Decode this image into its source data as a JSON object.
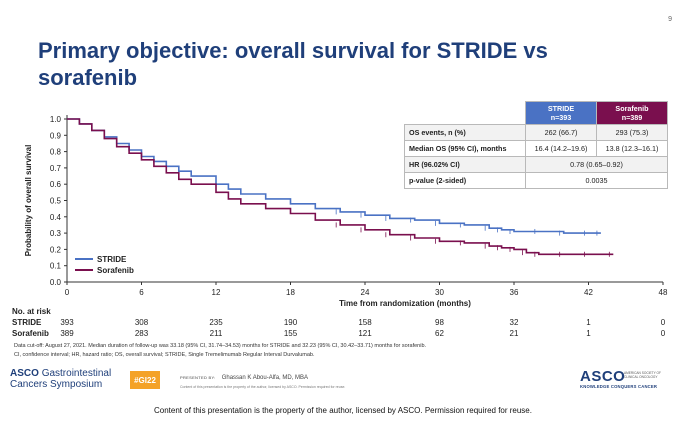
{
  "page_number": "9",
  "title": "Primary objective: overall survival for STRIDE vs sorafenib",
  "stats_table": {
    "col_headers": [
      {
        "name": "STRIDE",
        "n": "n=393"
      },
      {
        "name": "Sorafenib",
        "n": "n=389"
      }
    ],
    "rows": [
      {
        "label": "OS events, n (%)",
        "stride": "262 (66.7)",
        "sorafenib": "293 (75.3)"
      },
      {
        "label": "Median OS (95% CI), months",
        "stride": "16.4 (14.2–19.6)",
        "sorafenib": "13.8 (12.3–16.1)"
      },
      {
        "label": "HR (96.02% CI)",
        "combined": "0.78 (0.65–0.92)"
      },
      {
        "label": "p-value (2-sided)",
        "combined": "0.0035"
      }
    ]
  },
  "at_risk": {
    "title": "No. at risk",
    "rows": [
      {
        "name": "STRIDE",
        "values": [
          "393",
          "308",
          "235",
          "190",
          "158",
          "98",
          "32",
          "1",
          "0"
        ]
      },
      {
        "name": "Sorafenib",
        "values": [
          "389",
          "283",
          "211",
          "155",
          "121",
          "62",
          "21",
          "1",
          "0"
        ]
      }
    ]
  },
  "footnote": [
    "Data cut-off: August 27, 2021. Median duration of follow-up was 33.18 (95% CI, 31.74–34.53) months for STRIDE and 32.23 (95% CI, 30.42–33.71) months for sorafenib.",
    "CI, confidence interval; HR, hazard ratio; OS, overall survival; STRIDE, Single Tremelimumab Regular Interval Durvalumab."
  ],
  "footer": {
    "logo_line1_a": "ASCO",
    "logo_line1_b": "Gastrointestinal",
    "logo_line2": "Cancers Symposium",
    "hashtag": "#GI22",
    "presented_by": "PRESENTED BY:",
    "presenter": "Ghassan K Abou-Alfa, MD, MBA",
    "presenter_sub": "Content of this presentation is the property of the author, licensed by ASCO. Permission required for reuse.",
    "asco_word": "ASCO",
    "asco_society": "AMERICAN SOCIETY OF CLINICAL ONCOLOGY",
    "asco_tagline": "KNOWLEDGE CONQUERS CANCER",
    "bottom_notice": "Content of this presentation is the property of the author, licensed by ASCO. Permission required for reuse."
  },
  "colors": {
    "stride": "#4a72c4",
    "sorafenib": "#7a0f4e",
    "title": "#1f3f7a"
  },
  "chart_data": {
    "type": "line",
    "title": "",
    "xlabel": "Time from randomization (months)",
    "ylabel": "Probability of overall survival",
    "xlim": [
      0,
      48
    ],
    "ylim": [
      0,
      1.0
    ],
    "xticks": [
      0,
      6,
      12,
      18,
      24,
      30,
      36,
      42,
      48
    ],
    "yticks": [
      0.0,
      0.1,
      0.2,
      0.3,
      0.4,
      0.5,
      0.6,
      0.7,
      0.8,
      0.9,
      1.0
    ],
    "legend": [
      "STRIDE",
      "Sorafenib"
    ],
    "legend_position": "bottom-left",
    "series": [
      {
        "name": "STRIDE",
        "x": [
          0,
          1,
          2,
          3,
          4,
          5,
          6,
          7,
          8,
          9,
          10,
          12,
          13,
          14,
          16,
          18,
          20,
          22,
          24,
          26,
          28,
          30,
          32,
          34,
          35,
          36,
          38,
          40,
          42,
          43
        ],
        "y": [
          1.0,
          0.97,
          0.93,
          0.89,
          0.85,
          0.81,
          0.77,
          0.74,
          0.71,
          0.68,
          0.65,
          0.6,
          0.57,
          0.54,
          0.51,
          0.48,
          0.45,
          0.43,
          0.41,
          0.39,
          0.38,
          0.36,
          0.35,
          0.33,
          0.32,
          0.31,
          0.31,
          0.3,
          0.3,
          0.3
        ]
      },
      {
        "name": "Sorafenib",
        "x": [
          0,
          1,
          2,
          3,
          4,
          5,
          6,
          7,
          8,
          9,
          10,
          12,
          13,
          14,
          16,
          18,
          20,
          22,
          24,
          26,
          28,
          30,
          32,
          34,
          35,
          36,
          37,
          38,
          40,
          42,
          44
        ],
        "y": [
          1.0,
          0.97,
          0.93,
          0.88,
          0.83,
          0.79,
          0.75,
          0.71,
          0.67,
          0.63,
          0.6,
          0.55,
          0.51,
          0.48,
          0.45,
          0.42,
          0.38,
          0.35,
          0.32,
          0.29,
          0.27,
          0.25,
          0.24,
          0.22,
          0.21,
          0.2,
          0.18,
          0.17,
          0.17,
          0.17,
          0.17
        ]
      }
    ]
  }
}
